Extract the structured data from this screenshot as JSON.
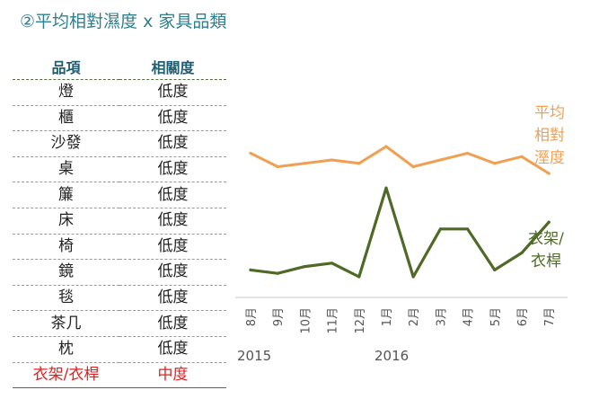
{
  "title": "②平均相對濕度 x 家具品類",
  "table": {
    "headers": [
      "品項",
      "相關度"
    ],
    "rows": [
      {
        "item": "燈",
        "level": "低度"
      },
      {
        "item": "櫃",
        "level": "低度"
      },
      {
        "item": "沙發",
        "level": "低度"
      },
      {
        "item": "桌",
        "level": "低度"
      },
      {
        "item": "簾",
        "level": "低度"
      },
      {
        "item": "床",
        "level": "低度"
      },
      {
        "item": "椅",
        "level": "低度"
      },
      {
        "item": "鏡",
        "level": "低度"
      },
      {
        "item": "毯",
        "level": "低度"
      },
      {
        "item": "茶几",
        "level": "低度"
      },
      {
        "item": "枕",
        "level": "低度"
      },
      {
        "item": "衣架/衣桿",
        "level": "中度",
        "highlight": true
      }
    ]
  },
  "chart_data": {
    "type": "line",
    "categories": [
      "8月",
      "9月",
      "10月",
      "11月",
      "12月",
      "1月",
      "2月",
      "3月",
      "4月",
      "5月",
      "6月",
      "7月"
    ],
    "year_labels": [
      {
        "label": "2015",
        "category_index": 0
      },
      {
        "label": "2016",
        "category_index": 5
      }
    ],
    "series": [
      {
        "name": "平均相對溼度",
        "label_lines": [
          "平均",
          "相對",
          "溼度"
        ],
        "color": "#f0a052",
        "values": [
          72,
          70,
          70.5,
          71,
          70.5,
          73,
          70,
          71,
          72,
          70.5,
          71.5,
          69
        ]
      },
      {
        "name": "衣架/衣桿",
        "label_lines": [
          "衣架/",
          "衣桿"
        ],
        "color": "#4f6a26",
        "values": [
          22,
          21,
          23,
          24,
          20,
          46,
          20,
          34,
          34,
          22,
          27,
          36
        ]
      }
    ],
    "grid": false,
    "legend": "inline-right"
  }
}
